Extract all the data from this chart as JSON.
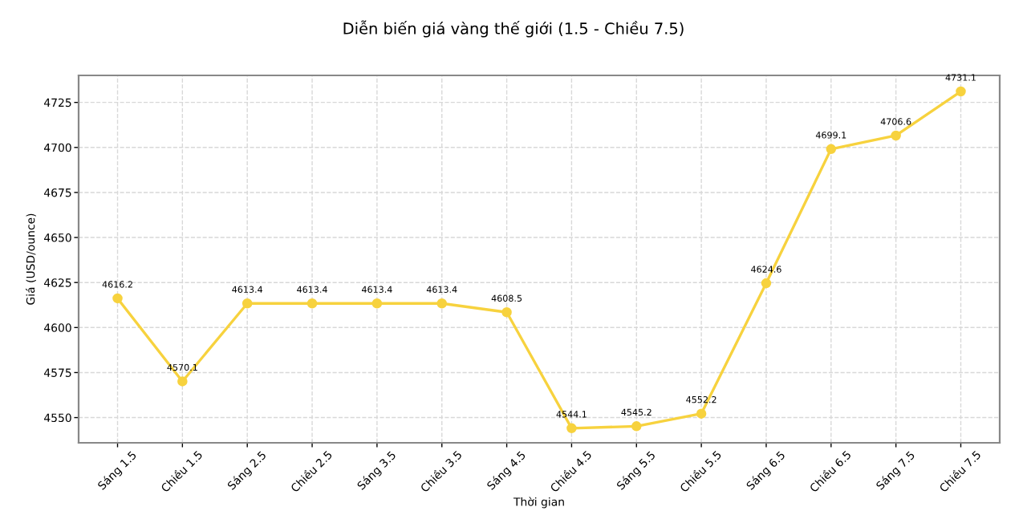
{
  "chart_data": {
    "type": "line",
    "title": "Diễn biến giá vàng thế giới (1.5 - Chiều 7.5)",
    "xlabel": "Thời gian",
    "ylabel": "Giá (USD/ounce)",
    "categories": [
      "Sáng 1.5",
      "Chiều 1.5",
      "Sáng 2.5",
      "Chiều 2.5",
      "Sáng 3.5",
      "Chiều 3.5",
      "Sáng 4.5",
      "Chiều 4.5",
      "Sáng 5.5",
      "Chiều 5.5",
      "Sáng 6.5",
      "Chiều 6.5",
      "Sáng 7.5",
      "Chiều 7.5"
    ],
    "series": [
      {
        "color": "#f7d23e",
        "values": [
          4616.2,
          4570.1,
          4613.4,
          4613.4,
          4613.4,
          4613.4,
          4608.5,
          4544.1,
          4545.2,
          4552.2,
          4624.6,
          4699.1,
          4706.6,
          4731.1
        ]
      }
    ],
    "ylim": [
      4536,
      4740
    ],
    "yticks": [
      4550,
      4575,
      4600,
      4625,
      4650,
      4675,
      4700,
      4725
    ],
    "grid": true,
    "marker": "circle",
    "line_style": "solid",
    "data_labels": true
  }
}
